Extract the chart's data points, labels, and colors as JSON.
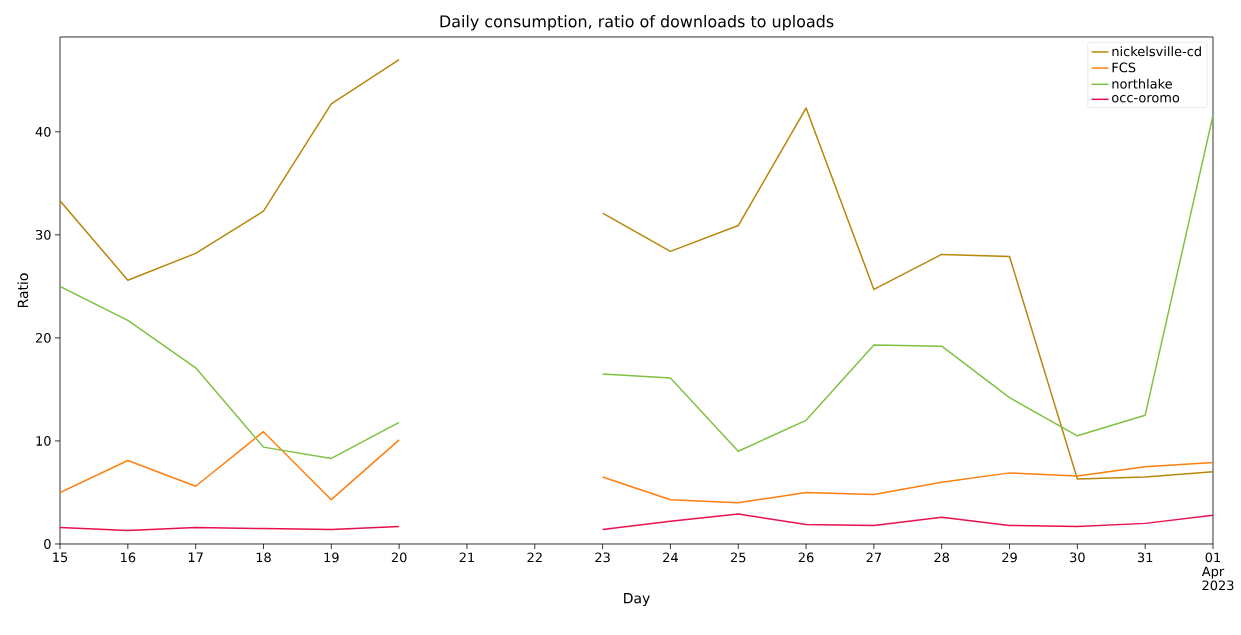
{
  "chart_data": {
    "type": "line",
    "title": "Daily consumption, ratio of downloads to uploads",
    "xlabel": "Day",
    "ylabel": "Ratio",
    "x": [
      "2023-03-15",
      "2023-03-16",
      "2023-03-17",
      "2023-03-18",
      "2023-03-19",
      "2023-03-20",
      "2023-03-21",
      "2023-03-22",
      "2023-03-23",
      "2023-03-24",
      "2023-03-25",
      "2023-03-26",
      "2023-03-27",
      "2023-03-28",
      "2023-03-29",
      "2023-03-30",
      "2023-03-31",
      "2023-04-01"
    ],
    "series": [
      {
        "name": "nickelsville-cd",
        "color": "#b8860b",
        "values": [
          33.3,
          25.6,
          28.2,
          32.3,
          42.7,
          47.0,
          null,
          null,
          32.1,
          28.4,
          30.9,
          42.3,
          24.7,
          28.1,
          27.9,
          6.3,
          6.5,
          7.0
        ]
      },
      {
        "name": "FCS",
        "color": "#ff7f0e",
        "values": [
          5.0,
          8.1,
          5.6,
          10.9,
          4.3,
          10.1,
          null,
          null,
          6.5,
          4.3,
          4.0,
          5.0,
          4.8,
          6.0,
          6.9,
          6.6,
          7.5,
          7.9
        ]
      },
      {
        "name": "northlake",
        "color": "#7fc241",
        "values": [
          25.0,
          21.7,
          17.1,
          9.4,
          8.3,
          11.8,
          null,
          null,
          16.5,
          16.1,
          9.0,
          12.0,
          19.3,
          19.2,
          14.2,
          10.5,
          12.5,
          41.6
        ]
      },
      {
        "name": "occ-oromo",
        "color": "#e8114d",
        "values": [
          1.6,
          1.3,
          1.6,
          1.5,
          1.4,
          1.7,
          null,
          null,
          1.4,
          2.2,
          2.9,
          1.9,
          1.8,
          2.6,
          1.8,
          1.7,
          2.0,
          2.8
        ]
      }
    ],
    "xlim": [
      "2023-03-15",
      "2023-04-01"
    ],
    "xticks": [
      {
        "value": "2023-03-15",
        "label": "15"
      },
      {
        "value": "2023-03-16",
        "label": "16"
      },
      {
        "value": "2023-03-17",
        "label": "17"
      },
      {
        "value": "2023-03-18",
        "label": "18"
      },
      {
        "value": "2023-03-19",
        "label": "19"
      },
      {
        "value": "2023-03-20",
        "label": "20"
      },
      {
        "value": "2023-03-21",
        "label": "21"
      },
      {
        "value": "2023-03-22",
        "label": "22"
      },
      {
        "value": "2023-03-23",
        "label": "23"
      },
      {
        "value": "2023-03-24",
        "label": "24"
      },
      {
        "value": "2023-03-25",
        "label": "25"
      },
      {
        "value": "2023-03-26",
        "label": "26"
      },
      {
        "value": "2023-03-27",
        "label": "27"
      },
      {
        "value": "2023-03-28",
        "label": "28"
      },
      {
        "value": "2023-03-29",
        "label": "29"
      },
      {
        "value": "2023-03-30",
        "label": "30"
      },
      {
        "value": "2023-03-31",
        "label": "31"
      },
      {
        "value": "2023-04-01",
        "label": "01 Apr 2023"
      }
    ],
    "ylim": [
      0,
      49.2
    ],
    "yticks": [
      0,
      10,
      20,
      30,
      40
    ],
    "legend": "top right",
    "grid": false,
    "marker": "none",
    "line_style": "solid"
  }
}
